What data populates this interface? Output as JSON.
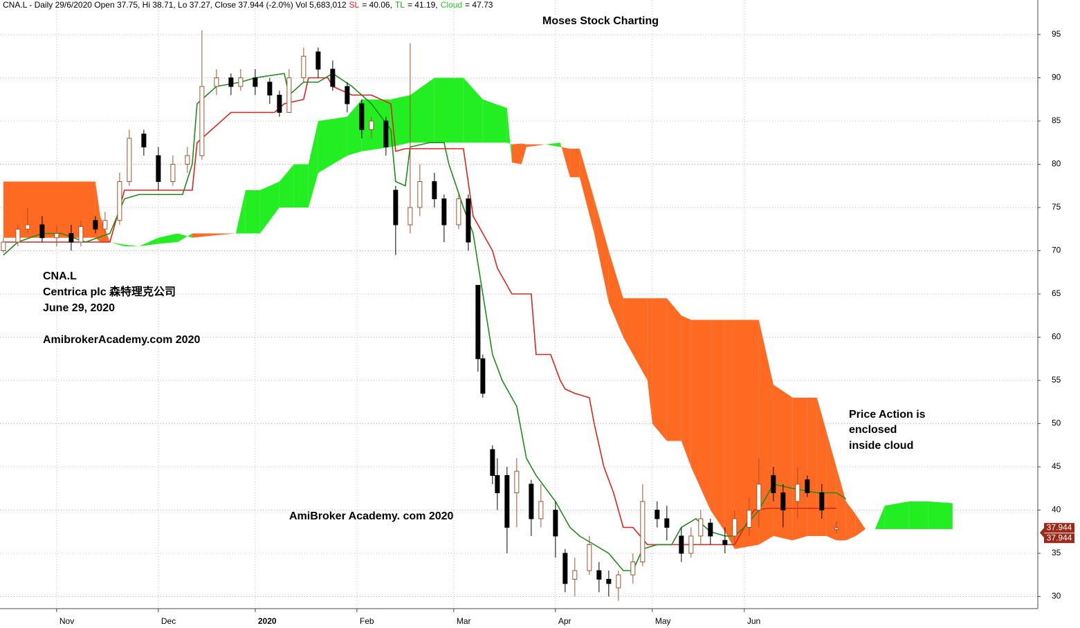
{
  "chart_data": {
    "type": "candlestick",
    "header": [
      {
        "text": "CNA.L - Daily 29/6/2020 Open 37.75, Hi 38.71, Lo 37.27, Close 37.944 (-2.0%) Vol 5,683,012",
        "color": "#000000"
      },
      {
        "text": "SL",
        "color": "#e0201b"
      },
      {
        "text": "= 40.06,",
        "color": "#000000"
      },
      {
        "text": "TL",
        "color": "#1a9e1a"
      },
      {
        "text": "= 41.19,",
        "color": "#000000"
      },
      {
        "text": "Cloud",
        "color": "#22cc22"
      },
      {
        "text": "= 47.73",
        "color": "#000000"
      }
    ],
    "title": "Moses Stock Charting",
    "annotations": [
      "CNA.L",
      "Centrica plc 森特理克公司",
      "June 29, 2020",
      "AmibrokerAcademy.com 2020",
      "AmiBroker Academy. com 2020",
      "Price Action is",
      "enclosed",
      "inside cloud"
    ],
    "annotation_color": "#e8322b",
    "xlim": [
      -0.7,
      213.6
    ],
    "xticks": [
      {
        "value": 11,
        "label": "Nov"
      },
      {
        "value": 32,
        "label": "Dec"
      },
      {
        "value": 52,
        "label": "2020"
      },
      {
        "value": 73,
        "label": "Feb"
      },
      {
        "value": 93,
        "label": "Mar"
      },
      {
        "value": 114,
        "label": "Apr"
      },
      {
        "value": 134,
        "label": "May"
      },
      {
        "value": 153,
        "label": "Jun"
      }
    ],
    "ylim": [
      28.6,
      99
    ],
    "yticks": [
      30,
      35,
      40,
      45,
      50,
      55,
      60,
      65,
      70,
      75,
      80,
      85,
      90,
      95
    ],
    "grid": true,
    "candles": {
      "up_color": "#a0522d",
      "down_color": "#000000",
      "x": [
        0,
        3,
        5,
        8,
        11,
        14,
        16,
        19,
        21,
        24,
        26,
        29,
        32,
        35,
        38,
        41,
        44,
        47,
        49,
        52,
        55,
        57,
        59,
        62,
        65,
        68,
        71,
        74,
        76,
        79,
        81,
        84,
        86,
        89,
        91,
        94,
        96,
        98,
        99,
        101,
        102,
        104,
        106,
        109,
        111,
        114,
        116,
        118,
        121,
        123,
        125,
        127,
        130,
        132,
        135,
        137,
        140,
        142,
        144,
        146,
        149,
        151,
        154,
        156,
        159,
        161,
        164,
        166,
        169,
        172
      ],
      "open": [
        70,
        71,
        72.5,
        73,
        71.5,
        72,
        71,
        73.5,
        72.5,
        73.5,
        78,
        83.5,
        81,
        78,
        80,
        81,
        89,
        90,
        89,
        90,
        89.5,
        88,
        86,
        90,
        93,
        91,
        89,
        87,
        84,
        85,
        77,
        73,
        75,
        78,
        76,
        73,
        76,
        66,
        57.5,
        47,
        44,
        44,
        42,
        43,
        39,
        40,
        35,
        32,
        33,
        33,
        32,
        31,
        32.5,
        34,
        40,
        39,
        37,
        35,
        37,
        38.5,
        36.5,
        37,
        38,
        40,
        44,
        42,
        41,
        43.5,
        42,
        37.75
      ],
      "high": [
        71.5,
        73,
        75,
        74,
        73,
        73,
        73.5,
        74,
        74.5,
        79,
        84,
        84,
        82,
        81,
        82,
        95.5,
        91,
        90.5,
        91,
        91,
        90,
        88.5,
        91,
        93.5,
        93.5,
        92,
        89.5,
        87.5,
        85.5,
        85.5,
        77.5,
        94,
        80,
        79,
        76.5,
        76.5,
        76.5,
        66,
        58,
        47.5,
        46,
        45,
        46,
        43.5,
        43,
        41,
        35.5,
        34.5,
        37,
        34,
        33,
        33,
        35,
        43,
        41,
        40.5,
        38,
        38,
        40,
        39,
        38,
        40,
        41.5,
        46,
        45,
        43,
        45,
        44,
        43,
        38.71
      ],
      "low": [
        69.8,
        70.5,
        72,
        71,
        70.5,
        70,
        70.5,
        72,
        72,
        73,
        77.5,
        81,
        77,
        77.5,
        79,
        80.5,
        88,
        88,
        88.5,
        88,
        87,
        85.5,
        86,
        89.5,
        90,
        88.5,
        86,
        83,
        83,
        81,
        69.5,
        72,
        74,
        75,
        71,
        72.5,
        70,
        56,
        53,
        43,
        40,
        35,
        38,
        37,
        38,
        34.5,
        30.5,
        30,
        32.5,
        30.5,
        30,
        29.5,
        31.5,
        33.5,
        38,
        36.5,
        34,
        34.5,
        36,
        36,
        35,
        36,
        37,
        38,
        41,
        38,
        39,
        41.5,
        39,
        37.27
      ],
      "close": [
        71,
        72.5,
        73,
        71.5,
        72,
        71,
        72.8,
        72.5,
        73.5,
        78,
        83,
        82,
        78,
        80,
        81,
        89,
        90,
        89,
        90,
        89,
        88,
        86,
        90,
        92.5,
        91,
        89,
        87,
        84,
        85,
        82,
        73,
        75,
        78,
        76,
        73,
        76,
        71,
        57.5,
        53.5,
        44,
        42,
        38,
        44.5,
        39,
        41,
        37,
        31.5,
        33,
        36,
        32,
        31.5,
        32.5,
        34,
        41,
        39,
        38,
        35,
        37,
        39,
        37,
        36,
        39,
        40,
        43,
        42,
        40,
        43,
        42,
        40,
        37.944
      ]
    },
    "tenkan": {
      "color": "#1a8c1a",
      "x": [
        0,
        3,
        8,
        12,
        17,
        22,
        25,
        28,
        37,
        39,
        40,
        44,
        49,
        52,
        58,
        59,
        62,
        65,
        68,
        72,
        76,
        80,
        81,
        83,
        84,
        88,
        91,
        92,
        95,
        97,
        99,
        101,
        103,
        106,
        108,
        110,
        114,
        117,
        119,
        122,
        125,
        128,
        130,
        132,
        135,
        138,
        140,
        143,
        146,
        149,
        151,
        153,
        156,
        159,
        163,
        168,
        172,
        174
      ],
      "values": [
        69.5,
        71,
        72,
        72,
        71,
        72,
        76,
        76.5,
        76.5,
        80,
        87,
        89,
        89.5,
        90,
        90.5,
        88,
        89.5,
        89.5,
        90.5,
        89,
        87,
        84,
        78,
        77.5,
        82,
        82.5,
        82.5,
        80,
        75,
        72,
        65,
        58,
        55,
        52,
        46,
        44,
        41,
        38,
        37,
        36,
        35,
        33,
        33,
        35.5,
        36,
        36,
        38,
        39,
        37.5,
        37,
        37,
        38,
        40,
        43,
        42.5,
        42,
        42,
        41.3
      ]
    },
    "kijun": {
      "color": "#e0201b",
      "x": [
        0,
        22,
        25,
        39,
        40,
        47,
        56,
        58,
        62,
        63,
        67,
        68,
        72,
        76,
        80,
        81,
        83,
        95,
        97,
        101,
        102,
        105,
        109,
        110,
        113,
        115,
        116,
        118,
        121,
        122,
        124,
        126,
        127,
        128,
        130,
        133,
        139,
        149,
        151,
        152,
        155,
        158,
        172
      ],
      "values": [
        71,
        71,
        77,
        77,
        82.5,
        86,
        86,
        87,
        87.5,
        90,
        90,
        89,
        88,
        88,
        87,
        81.5,
        81.8,
        81.8,
        74,
        70,
        68,
        65,
        65,
        58,
        58,
        55,
        54,
        53.5,
        53,
        50,
        45,
        42,
        40,
        38,
        38,
        36,
        36,
        36,
        36,
        37,
        40,
        40.2,
        40.2
      ]
    },
    "cloud": {
      "bull_color": "#22ee22",
      "bear_color": "#ff6a22",
      "x": [
        0,
        19,
        20,
        22,
        25,
        28,
        32,
        36,
        39,
        44,
        48,
        50,
        53,
        57,
        60,
        63,
        65,
        71,
        74,
        80,
        84,
        89,
        95,
        99,
        104,
        105,
        107,
        108,
        112,
        115,
        117,
        119,
        122,
        125,
        128,
        133,
        134,
        137,
        140,
        142,
        146,
        149,
        151,
        156,
        159,
        163,
        166,
        168,
        170,
        172,
        174,
        176,
        178,
        180,
        182,
        187,
        191,
        196
      ],
      "span_a": [
        71.5,
        71.5,
        71,
        71,
        70.7,
        70.5,
        71.5,
        72,
        71.5,
        71.8,
        72,
        77,
        77,
        78,
        80,
        80,
        85,
        85.5,
        87.5,
        87.5,
        88,
        90,
        90,
        87.5,
        86.5,
        80.2,
        80,
        82,
        82.3,
        82.5,
        78.5,
        78.5,
        72,
        64,
        60,
        55,
        50,
        48,
        48,
        45,
        40,
        37.5,
        35.5,
        36,
        37,
        36.5,
        37,
        37,
        37,
        36.5,
        36.5,
        37,
        37.8,
        37.8,
        40.5,
        41,
        41,
        40.8
      ],
      "span_b": [
        78,
        78,
        74,
        71,
        70.5,
        70.5,
        70.8,
        71,
        72,
        72,
        72,
        72,
        72,
        75,
        75,
        75,
        79,
        81,
        81.5,
        82,
        82.5,
        82.5,
        82.5,
        82.5,
        82.5,
        82.3,
        82.4,
        82.3,
        82.3,
        82,
        81.8,
        81.8,
        76,
        70,
        64.5,
        64.5,
        64.5,
        64.5,
        62.5,
        62,
        62,
        62,
        62,
        62,
        54.5,
        53,
        53,
        53,
        49,
        45,
        41,
        39.5,
        37.8,
        37.8,
        37.8,
        37.8,
        37.8,
        37.8
      ]
    }
  }
}
